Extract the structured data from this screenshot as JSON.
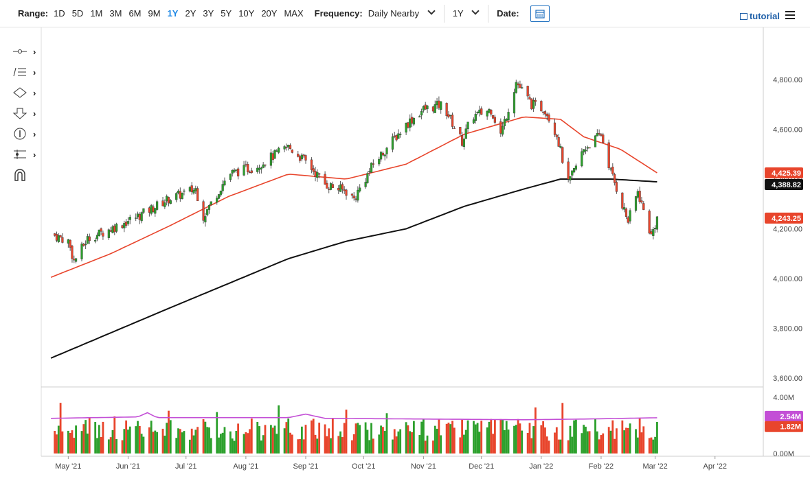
{
  "toolbar": {
    "range_label": "Range:",
    "ranges": [
      "1D",
      "5D",
      "1M",
      "3M",
      "6M",
      "9M",
      "1Y",
      "2Y",
      "3Y",
      "5Y",
      "10Y",
      "20Y",
      "MAX"
    ],
    "active_range": "1Y",
    "frequency_label": "Frequency:",
    "frequency_value": "Daily Nearby",
    "period_value": "1Y",
    "date_label": "Date:",
    "tutorial_label": "tutorial"
  },
  "colors": {
    "up": "#2ca02c",
    "down": "#e8452c",
    "ma50": "#e8452c",
    "ma200": "#111111",
    "volume_avg": "#c34fd6",
    "accent": "#1e88e5"
  },
  "tools": [
    "line-tool-icon",
    "fib-tool-icon",
    "shape-tool-icon",
    "arrow-tool-icon",
    "number-tool-icon",
    "measure-tool-icon",
    "magnet-icon"
  ],
  "chart_data": {
    "type": "candlestick",
    "x_labels": [
      "May '21",
      "Jun '21",
      "Jul '21",
      "Aug '21",
      "Sep '21",
      "Oct '21",
      "Nov '21",
      "Dec '21",
      "Jan '22",
      "Feb '22",
      "Mar '22",
      "Apr '22"
    ],
    "price_axis": {
      "ticks": [
        "4,800.00",
        "4,600.00",
        "4,400.00",
        "4,200.00",
        "4,000.00",
        "3,800.00",
        "3,600.00"
      ],
      "ylim": [
        3600,
        4850
      ]
    },
    "volume_axis": {
      "ticks": [
        "4.00M",
        "2.00M",
        "0.00M"
      ],
      "ylim": [
        0,
        4.0
      ]
    },
    "last_values": {
      "ma50": "4,425.39",
      "ma200": "4,388.82",
      "close": "4,243.25",
      "volume_avg": "2.54M",
      "volume": "1.82M"
    },
    "close_series": [
      [
        "2021-05-01",
        4180
      ],
      [
        "2021-05-10",
        4150
      ],
      [
        "2021-05-13",
        4070
      ],
      [
        "2021-05-20",
        4160
      ],
      [
        "2021-06-01",
        4200
      ],
      [
        "2021-06-15",
        4250
      ],
      [
        "2021-07-01",
        4320
      ],
      [
        "2021-07-15",
        4360
      ],
      [
        "2021-07-19",
        4250
      ],
      [
        "2021-08-01",
        4420
      ],
      [
        "2021-08-15",
        4450
      ],
      [
        "2021-09-01",
        4530
      ],
      [
        "2021-09-10",
        4470
      ],
      [
        "2021-09-20",
        4380
      ],
      [
        "2021-10-01",
        4350
      ],
      [
        "2021-10-05",
        4320
      ],
      [
        "2021-10-15",
        4460
      ],
      [
        "2021-11-01",
        4620
      ],
      [
        "2021-11-10",
        4680
      ],
      [
        "2021-11-20",
        4700
      ],
      [
        "2021-11-30",
        4550
      ],
      [
        "2021-12-05",
        4650
      ],
      [
        "2021-12-15",
        4680
      ],
      [
        "2021-12-20",
        4580
      ],
      [
        "2021-12-28",
        4790
      ],
      [
        "2022-01-05",
        4700
      ],
      [
        "2022-01-12",
        4680
      ],
      [
        "2022-01-18",
        4580
      ],
      [
        "2022-01-24",
        4380
      ],
      [
        "2022-02-01",
        4520
      ],
      [
        "2022-02-10",
        4580
      ],
      [
        "2022-02-15",
        4430
      ],
      [
        "2022-02-24",
        4230
      ],
      [
        "2022-03-01",
        4350
      ],
      [
        "2022-03-08",
        4170
      ],
      [
        "2022-03-11",
        4243
      ]
    ],
    "ma50_series": [
      [
        "2021-05-01",
        4005
      ],
      [
        "2021-06-01",
        4100
      ],
      [
        "2021-07-01",
        4210
      ],
      [
        "2021-08-01",
        4330
      ],
      [
        "2021-09-01",
        4420
      ],
      [
        "2021-10-01",
        4400
      ],
      [
        "2021-11-01",
        4460
      ],
      [
        "2021-12-01",
        4580
      ],
      [
        "2022-01-01",
        4650
      ],
      [
        "2022-01-20",
        4640
      ],
      [
        "2022-02-01",
        4570
      ],
      [
        "2022-02-20",
        4520
      ],
      [
        "2022-03-11",
        4425
      ]
    ],
    "ma200_series": [
      [
        "2021-05-01",
        3680
      ],
      [
        "2021-07-01",
        3880
      ],
      [
        "2021-09-01",
        4080
      ],
      [
        "2021-10-01",
        4150
      ],
      [
        "2021-11-01",
        4200
      ],
      [
        "2021-12-01",
        4290
      ],
      [
        "2022-01-01",
        4360
      ],
      [
        "2022-01-20",
        4400
      ],
      [
        "2022-02-15",
        4400
      ],
      [
        "2022-03-11",
        4389
      ]
    ],
    "volume_avg_series": [
      [
        "2021-05-01",
        2.5
      ],
      [
        "2021-06-15",
        2.6
      ],
      [
        "2021-06-20",
        2.9
      ],
      [
        "2021-06-25",
        2.55
      ],
      [
        "2021-09-01",
        2.55
      ],
      [
        "2021-09-10",
        2.8
      ],
      [
        "2021-09-20",
        2.5
      ],
      [
        "2022-01-01",
        2.4
      ],
      [
        "2022-02-01",
        2.45
      ],
      [
        "2022-03-11",
        2.54
      ]
    ]
  }
}
